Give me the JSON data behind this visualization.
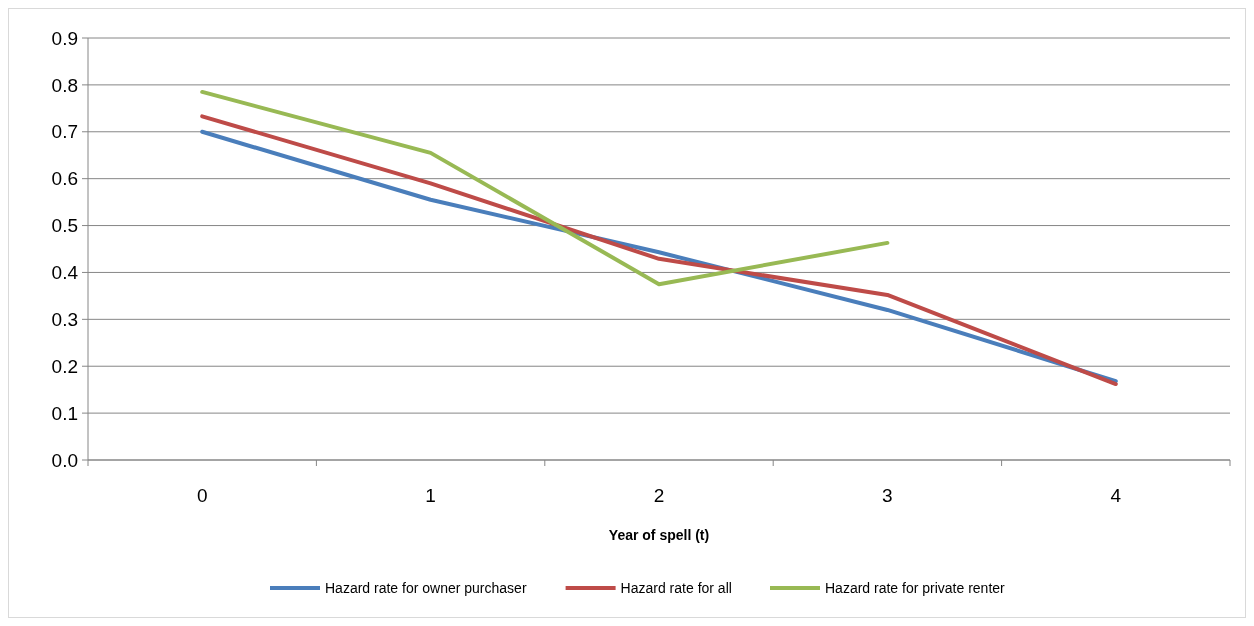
{
  "chart_data": {
    "type": "line",
    "xlabel": "Year of spell (t)",
    "categories": [
      "0",
      "1",
      "2",
      "3",
      "4"
    ],
    "series": [
      {
        "name": "Hazard rate for owner purchaser",
        "color": "#4a7ebb",
        "values": [
          0.7,
          0.555,
          0.443,
          0.32,
          0.168
        ]
      },
      {
        "name": "Hazard rate for all",
        "color": "#be4b48",
        "values": [
          0.733,
          0.59,
          0.429,
          0.352,
          0.162
        ]
      },
      {
        "name": "Hazard rate for private renter",
        "color": "#98b954",
        "values": [
          0.785,
          0.655,
          0.375,
          0.463,
          null
        ]
      }
    ],
    "ylim": [
      0,
      0.9
    ],
    "yticks": [
      {
        "value": 0,
        "label": "0.0"
      },
      {
        "value": 0.1,
        "label": "0.1"
      },
      {
        "value": 0.2,
        "label": "0.2"
      },
      {
        "value": 0.3,
        "label": "0.3"
      },
      {
        "value": 0.4,
        "label": "0.4"
      },
      {
        "value": 0.5,
        "label": "0.5"
      },
      {
        "value": 0.6,
        "label": "0.6"
      },
      {
        "value": 0.7,
        "label": "0.7"
      },
      {
        "value": 0.8,
        "label": "0.8"
      },
      {
        "value": 0.9,
        "label": "0.9"
      }
    ],
    "grid": "y",
    "legend": "bottom",
    "marker": "none",
    "line_style": "solid"
  }
}
